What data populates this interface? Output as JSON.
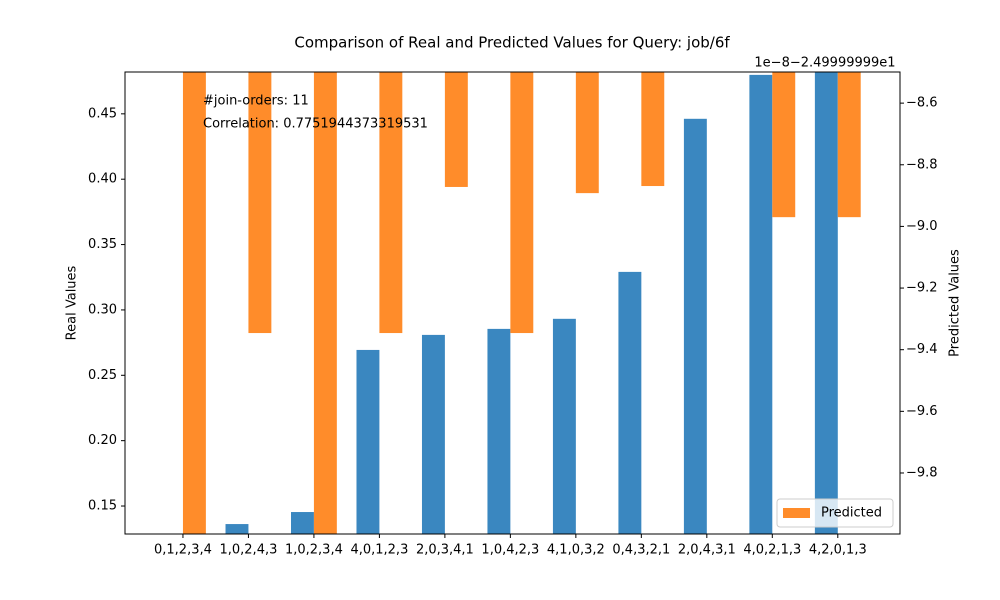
{
  "chart_data": {
    "type": "bar",
    "title": "Comparison of Real and Predicted Values for Query: job/6f",
    "categories": [
      "0,1,2,3,4",
      "1,0,2,4,3",
      "1,0,2,3,4",
      "4,0,1,2,3",
      "2,0,3,4,1",
      "1,0,4,2,3",
      "4,1,0,3,2",
      "0,4,3,2,1",
      "2,0,4,3,1",
      "4,0,2,1,3",
      "4,2,0,1,3"
    ],
    "series": [
      {
        "color": "#3a87c0",
        "values": [
          0.12,
          0.1362,
          0.1454,
          0.2694,
          0.2809,
          0.2855,
          0.2932,
          0.3291,
          0.4462,
          0.4798,
          0.49
        ]
      },
      {
        "name": "Predicted",
        "color": "#ff8c2a",
        "axis": "y2",
        "values": [
          -10.0,
          -9.346,
          -10.0,
          -9.346,
          -8.872,
          -9.346,
          -8.892,
          -8.869,
          -8.45,
          -8.97,
          -8.97
        ]
      }
    ],
    "ylabel": "Real Values",
    "y2label": "Predicted Values",
    "y2_offset_text": "1e−8−2.49999999e1",
    "ylim": [
      0.1286,
      0.482
    ],
    "yticks": [
      0.15,
      {
        "value": 0.2,
        "label": "0.20"
      },
      0.25,
      {
        "value": 0.3,
        "label": "0.30"
      },
      0.35,
      {
        "value": 0.4,
        "label": "0.40"
      },
      0.45
    ],
    "y2lim": [
      -9.998,
      -8.499
    ],
    "y2ticks": [
      {
        "value": -9.8,
        "label": "−9.8"
      },
      {
        "value": -9.6,
        "label": "−9.6"
      },
      {
        "value": -9.4,
        "label": "−9.4"
      },
      {
        "value": -9.2,
        "label": "−9.2"
      },
      {
        "value": -9.0,
        "label": "−9.0"
      },
      {
        "value": -8.8,
        "label": "−8.8"
      },
      {
        "value": -8.6,
        "label": "−8.6"
      }
    ],
    "annotations": [
      "#join-orders: 11",
      "Correlation: 0.7751944373319531"
    ],
    "legend_loc": "lower right"
  }
}
